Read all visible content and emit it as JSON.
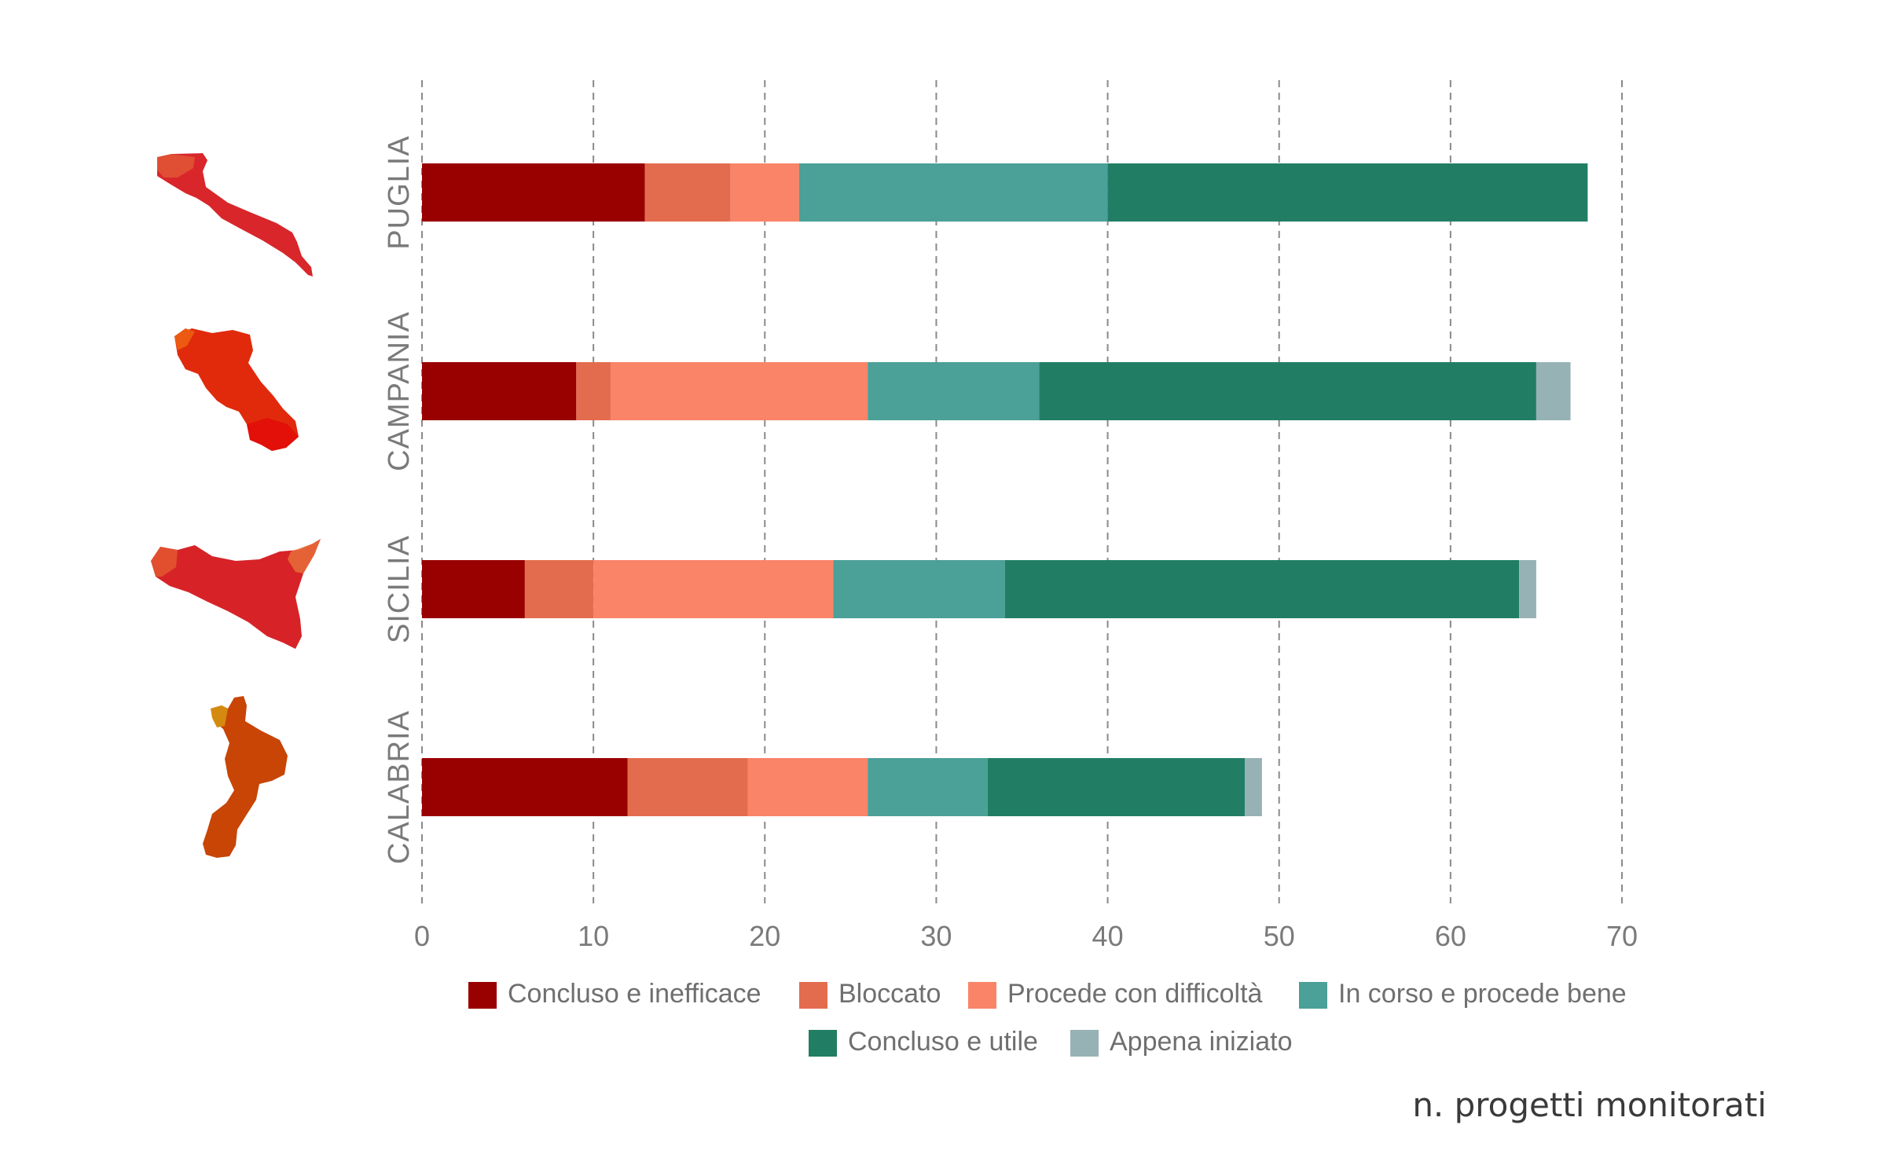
{
  "chart_data": {
    "type": "bar",
    "orientation": "horizontal",
    "stacked": true,
    "categories": [
      "PUGLIA",
      "CAMPANIA",
      "SICILIA",
      "CALABRIA"
    ],
    "series": [
      {
        "name": "Concluso e inefficace",
        "color": "#990000",
        "values": [
          13,
          9,
          6,
          12
        ]
      },
      {
        "name": "Bloccato",
        "color": "#E46C4E",
        "values": [
          5,
          2,
          4,
          7
        ]
      },
      {
        "name": "Procede con difficoltà",
        "color": "#F98468",
        "values": [
          4,
          15,
          14,
          7
        ]
      },
      {
        "name": "In corso e procede bene",
        "color": "#4BA097",
        "values": [
          18,
          10,
          10,
          7
        ]
      },
      {
        "name": "Concluso e utile",
        "color": "#217E65",
        "values": [
          28,
          29,
          30,
          15
        ]
      },
      {
        "name": "Appena iniziato",
        "color": "#97B2B5",
        "values": [
          0,
          2,
          1,
          1
        ]
      }
    ],
    "xlim": [
      0,
      70
    ],
    "xticks": [
      0,
      10,
      20,
      30,
      40,
      50,
      60,
      70
    ],
    "xlabel": "n. progetti monitorati",
    "grid": "vertical dashed",
    "legend_position": "bottom"
  },
  "region_icons": [
    {
      "name": "puglia-map-icon",
      "color": "#D8262B"
    },
    {
      "name": "campania-map-icon",
      "color": "#E12A0C"
    },
    {
      "name": "sicilia-map-icon",
      "color": "#D72328"
    },
    {
      "name": "calabria-map-icon",
      "color": "#C84505"
    }
  ]
}
